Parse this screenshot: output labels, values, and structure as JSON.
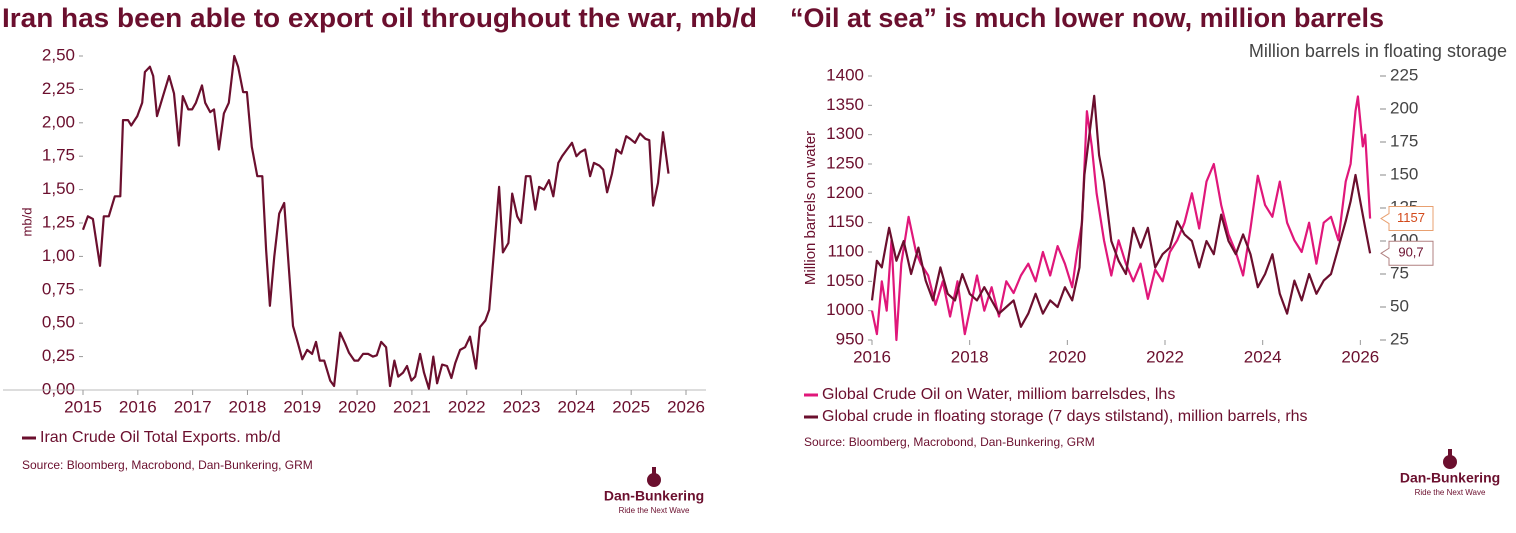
{
  "chart_data": [
    {
      "type": "line",
      "title": "Iran has been able to export oil throughout the war, mb/d",
      "y_label": "mb/d",
      "source": "Source: Bloomberg, Macrobond, Dan-Bunkering, GRM",
      "xlim": [
        2015,
        2026
      ],
      "xticks": [
        2015,
        2016,
        2017,
        2018,
        2019,
        2020,
        2021,
        2022,
        2023,
        2024,
        2025,
        2026
      ],
      "ylim": [
        0,
        2.5
      ],
      "yticks": [
        {
          "value": 0,
          "label": "0,00"
        },
        {
          "value": 0.25,
          "label": "0,25"
        },
        {
          "value": 0.5,
          "label": "0,50"
        },
        {
          "value": 0.75,
          "label": "0,75"
        },
        {
          "value": 1,
          "label": "1,00"
        },
        {
          "value": 1.25,
          "label": "1,25"
        },
        {
          "value": 1.5,
          "label": "1,50"
        },
        {
          "value": 1.75,
          "label": "1,75"
        },
        {
          "value": 2,
          "label": "2,00"
        },
        {
          "value": 2.25,
          "label": "2,25"
        },
        {
          "value": 2.5,
          "label": "2,50"
        }
      ],
      "series": [
        {
          "name": "Iran Crude Oil Total Exports. mb/d",
          "color": "#6b0f2e",
          "x": [
            2015.0,
            2015.09,
            2015.18,
            2015.31,
            2015.38,
            2015.47,
            2015.58,
            2015.68,
            2015.73,
            2015.82,
            2015.88,
            2015.99,
            2016.08,
            2016.13,
            2016.22,
            2016.28,
            2016.35,
            2016.46,
            2016.57,
            2016.66,
            2016.75,
            2016.82,
            2016.92,
            2016.99,
            2017.06,
            2017.17,
            2017.23,
            2017.32,
            2017.39,
            2017.48,
            2017.57,
            2017.66,
            2017.76,
            2017.83,
            2017.92,
            2017.99,
            2018.08,
            2018.18,
            2018.27,
            2018.34,
            2018.41,
            2018.49,
            2018.58,
            2018.67,
            2018.74,
            2018.83,
            2018.92,
            2019.0,
            2019.09,
            2019.18,
            2019.25,
            2019.32,
            2019.4,
            2019.51,
            2019.58,
            2019.69,
            2019.78,
            2019.85,
            2019.95,
            2020.02,
            2020.11,
            2020.2,
            2020.29,
            2020.36,
            2020.44,
            2020.53,
            2020.6,
            2020.68,
            2020.75,
            2020.84,
            2020.91,
            2020.99,
            2021.06,
            2021.15,
            2021.22,
            2021.31,
            2021.39,
            2021.46,
            2021.55,
            2021.64,
            2021.72,
            2021.79,
            2021.88,
            2021.97,
            2022.06,
            2022.17,
            2022.24,
            2022.34,
            2022.41,
            2022.5,
            2022.59,
            2022.66,
            2022.76,
            2022.83,
            2022.92,
            2022.99,
            2023.08,
            2023.16,
            2023.25,
            2023.32,
            2023.41,
            2023.5,
            2023.58,
            2023.67,
            2023.74,
            2023.83,
            2023.92,
            2024.0,
            2024.07,
            2024.16,
            2024.25,
            2024.32,
            2024.42,
            2024.49,
            2024.56,
            2024.65,
            2024.73,
            2024.82,
            2024.91,
            2024.98,
            2025.07,
            2025.16,
            2025.26,
            2025.33,
            2025.4,
            2025.49,
            2025.58,
            2025.68
          ],
          "values": [
            1.2,
            1.3,
            1.28,
            0.93,
            1.3,
            1.3,
            1.45,
            1.45,
            2.02,
            2.02,
            1.98,
            2.05,
            2.15,
            2.38,
            2.42,
            2.35,
            2.05,
            2.2,
            2.35,
            2.22,
            1.83,
            2.2,
            2.1,
            2.1,
            2.15,
            2.28,
            2.15,
            2.08,
            2.1,
            1.8,
            2.07,
            2.15,
            2.5,
            2.42,
            2.23,
            2.23,
            1.82,
            1.6,
            1.6,
            1.05,
            0.63,
            1.0,
            1.32,
            1.4,
            1.0,
            0.48,
            0.35,
            0.23,
            0.3,
            0.27,
            0.36,
            0.22,
            0.22,
            0.07,
            0.03,
            0.43,
            0.35,
            0.28,
            0.22,
            0.22,
            0.27,
            0.27,
            0.25,
            0.26,
            0.36,
            0.32,
            0.03,
            0.22,
            0.1,
            0.13,
            0.18,
            0.07,
            0.1,
            0.27,
            0.13,
            0.01,
            0.25,
            0.05,
            0.19,
            0.18,
            0.09,
            0.2,
            0.3,
            0.32,
            0.4,
            0.16,
            0.47,
            0.52,
            0.6,
            1.05,
            1.52,
            1.03,
            1.1,
            1.47,
            1.3,
            1.25,
            1.6,
            1.6,
            1.35,
            1.52,
            1.5,
            1.57,
            1.45,
            1.7,
            1.75,
            1.8,
            1.85,
            1.75,
            1.78,
            1.8,
            1.6,
            1.7,
            1.68,
            1.65,
            1.48,
            1.62,
            1.8,
            1.77,
            1.9,
            1.88,
            1.85,
            1.92,
            1.88,
            1.87,
            1.38,
            1.55,
            1.93,
            1.62
          ]
        }
      ]
    },
    {
      "type": "line",
      "title": "“Oil at sea” is much lower now, million barrels",
      "y_label": "Million barrels on water",
      "y2_label": "Million barrels in floating storage",
      "source": "Source: Bloomberg, Macrobond, Dan-Bunkering, GRM",
      "xlim": [
        2016,
        2026.3
      ],
      "xticks": [
        2016,
        2018,
        2020,
        2022,
        2024,
        2026
      ],
      "ylim": [
        950,
        1400
      ],
      "yticks": [
        950,
        1000,
        1050,
        1100,
        1150,
        1200,
        1250,
        1300,
        1350,
        1400
      ],
      "y2lim": [
        25,
        225
      ],
      "y2ticks": [
        25,
        50,
        75,
        100,
        125,
        150,
        175,
        200,
        225
      ],
      "series": [
        {
          "name": "Global Crude Oil on Water, milliom barrelsdes, lhs",
          "color": "#e0177a",
          "x": [
            2016.0,
            2016.1,
            2016.2,
            2016.3,
            2016.4,
            2016.5,
            2016.6,
            2016.75,
            2016.9,
            2017.0,
            2017.15,
            2017.3,
            2017.45,
            2017.6,
            2017.75,
            2017.9,
            2018.0,
            2018.15,
            2018.3,
            2018.45,
            2018.6,
            2018.75,
            2018.9,
            2019.05,
            2019.2,
            2019.35,
            2019.5,
            2019.65,
            2019.8,
            2019.95,
            2020.1,
            2020.2,
            2020.3,
            2020.4,
            2020.5,
            2020.6,
            2020.75,
            2020.9,
            2021.05,
            2021.2,
            2021.35,
            2021.5,
            2021.65,
            2021.8,
            2021.95,
            2022.1,
            2022.25,
            2022.4,
            2022.55,
            2022.7,
            2022.85,
            2023.0,
            2023.15,
            2023.3,
            2023.45,
            2023.6,
            2023.75,
            2023.9,
            2024.05,
            2024.2,
            2024.35,
            2024.5,
            2024.65,
            2024.8,
            2024.95,
            2025.1,
            2025.25,
            2025.4,
            2025.55,
            2025.7,
            2025.8,
            2025.9,
            2025.95,
            2026.05,
            2026.1,
            2026.2
          ],
          "values": [
            1000,
            960,
            1050,
            1000,
            1120,
            950,
            1080,
            1160,
            1100,
            1080,
            1060,
            1010,
            1050,
            990,
            1050,
            960,
            1000,
            1060,
            1000,
            1040,
            990,
            1050,
            1030,
            1060,
            1080,
            1050,
            1100,
            1060,
            1110,
            1080,
            1040,
            1100,
            1150,
            1340,
            1280,
            1200,
            1120,
            1060,
            1120,
            1080,
            1050,
            1080,
            1020,
            1070,
            1050,
            1100,
            1120,
            1150,
            1200,
            1140,
            1220,
            1250,
            1180,
            1130,
            1100,
            1060,
            1140,
            1230,
            1180,
            1160,
            1220,
            1150,
            1120,
            1100,
            1150,
            1080,
            1150,
            1160,
            1120,
            1220,
            1250,
            1340,
            1365,
            1280,
            1300,
            1157
          ],
          "end_label": 1157
        },
        {
          "name": "Global crude in floating storage (7 days stilstand), million barrels, rhs",
          "color": "#6b0f2e",
          "axis": "y2",
          "x": [
            2016.0,
            2016.1,
            2016.2,
            2016.35,
            2016.5,
            2016.65,
            2016.8,
            2016.95,
            2017.1,
            2017.25,
            2017.4,
            2017.55,
            2017.7,
            2017.85,
            2018.0,
            2018.15,
            2018.3,
            2018.45,
            2018.6,
            2018.75,
            2018.9,
            2019.05,
            2019.2,
            2019.35,
            2019.5,
            2019.65,
            2019.8,
            2019.95,
            2020.1,
            2020.25,
            2020.35,
            2020.45,
            2020.55,
            2020.65,
            2020.75,
            2020.9,
            2021.05,
            2021.2,
            2021.35,
            2021.5,
            2021.65,
            2021.8,
            2021.95,
            2022.1,
            2022.25,
            2022.4,
            2022.55,
            2022.7,
            2022.85,
            2023.0,
            2023.15,
            2023.3,
            2023.45,
            2023.6,
            2023.75,
            2023.9,
            2024.05,
            2024.2,
            2024.35,
            2024.5,
            2024.65,
            2024.8,
            2024.95,
            2025.1,
            2025.25,
            2025.4,
            2025.55,
            2025.7,
            2025.8,
            2025.9,
            2026.0,
            2026.1,
            2026.2
          ],
          "values": [
            55,
            85,
            80,
            110,
            85,
            100,
            75,
            95,
            70,
            55,
            80,
            60,
            55,
            75,
            60,
            55,
            65,
            55,
            45,
            50,
            55,
            35,
            45,
            60,
            45,
            55,
            50,
            65,
            55,
            80,
            150,
            180,
            210,
            165,
            145,
            100,
            85,
            75,
            110,
            95,
            110,
            80,
            90,
            95,
            115,
            105,
            100,
            80,
            100,
            90,
            120,
            100,
            90,
            105,
            90,
            65,
            75,
            90,
            60,
            45,
            70,
            55,
            75,
            60,
            70,
            75,
            95,
            115,
            130,
            150,
            130,
            110,
            90.7
          ],
          "end_label": {
            "value": 90.7,
            "label": "90,7"
          }
        }
      ]
    }
  ],
  "logos": [
    {
      "name": "Dan-Bunkering",
      "tagline": "Ride the Next Wave"
    },
    {
      "name": "Dan-Bunkering",
      "tagline": "Ride the Next Wave"
    }
  ]
}
